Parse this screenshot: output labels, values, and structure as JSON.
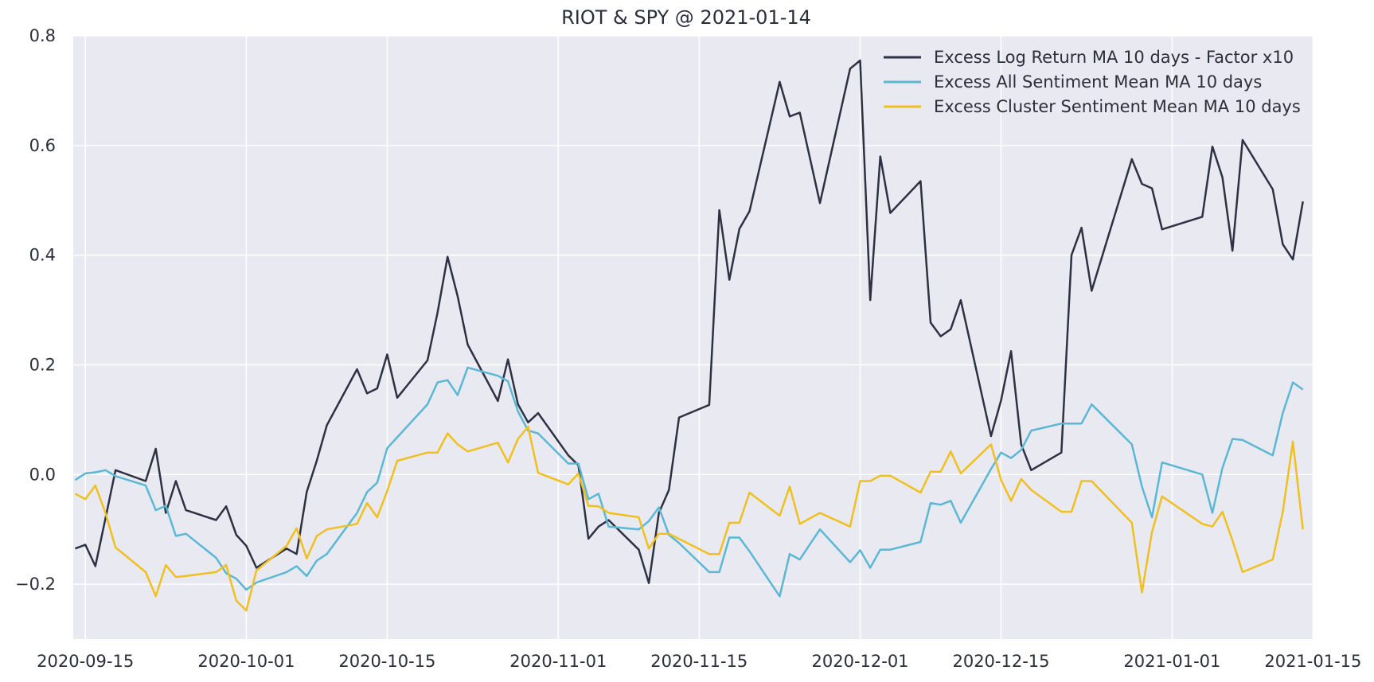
{
  "chart_data": {
    "type": "line",
    "title": "RIOT & SPY @ 2021-01-14",
    "xlabel": "",
    "ylabel": "",
    "x_axis": "date",
    "xlim": [
      "2020-09-14",
      "2021-01-15"
    ],
    "ylim": [
      -0.3,
      0.8
    ],
    "x_ticks": [
      "2020-09-15",
      "2020-10-01",
      "2020-10-15",
      "2020-11-01",
      "2020-11-15",
      "2020-12-01",
      "2020-12-15",
      "2021-01-01",
      "2021-01-15"
    ],
    "y_ticks": [
      -0.2,
      0.0,
      0.2,
      0.4,
      0.6,
      0.8
    ],
    "y_tick_labels": [
      "−0.2",
      "0.0",
      "0.2",
      "0.4",
      "0.6",
      "0.8"
    ],
    "grid": true,
    "background": "#e9e9f1",
    "legend_position": "top-right",
    "series": [
      {
        "name": "Excess Log Return MA 10 days - Factor x10",
        "color": "#2d3142",
        "points": [
          [
            "2020-09-14",
            -0.135
          ],
          [
            "2020-09-15",
            -0.128
          ],
          [
            "2020-09-16",
            -0.167
          ],
          [
            "2020-09-17",
            -0.08
          ],
          [
            "2020-09-18",
            0.008
          ],
          [
            "2020-09-21",
            -0.012
          ],
          [
            "2020-09-22",
            0.047
          ],
          [
            "2020-09-23",
            -0.07
          ],
          [
            "2020-09-24",
            -0.012
          ],
          [
            "2020-09-25",
            -0.065
          ],
          [
            "2020-09-28",
            -0.083
          ],
          [
            "2020-09-29",
            -0.058
          ],
          [
            "2020-09-30",
            -0.11
          ],
          [
            "2020-10-01",
            -0.13
          ],
          [
            "2020-10-02",
            -0.17
          ],
          [
            "2020-10-05",
            -0.135
          ],
          [
            "2020-10-06",
            -0.145
          ],
          [
            "2020-10-07",
            -0.032
          ],
          [
            "2020-10-08",
            0.025
          ],
          [
            "2020-10-09",
            0.09
          ],
          [
            "2020-10-12",
            0.192
          ],
          [
            "2020-10-13",
            0.148
          ],
          [
            "2020-10-14",
            0.157
          ],
          [
            "2020-10-15",
            0.219
          ],
          [
            "2020-10-16",
            0.14
          ],
          [
            "2020-10-19",
            0.208
          ],
          [
            "2020-10-20",
            0.295
          ],
          [
            "2020-10-21",
            0.397
          ],
          [
            "2020-10-22",
            0.325
          ],
          [
            "2020-10-23",
            0.237
          ],
          [
            "2020-10-26",
            0.134
          ],
          [
            "2020-10-27",
            0.21
          ],
          [
            "2020-10-28",
            0.128
          ],
          [
            "2020-10-29",
            0.095
          ],
          [
            "2020-10-30",
            0.112
          ],
          [
            "2020-11-02",
            0.035
          ],
          [
            "2020-11-03",
            0.017
          ],
          [
            "2020-11-04",
            -0.117
          ],
          [
            "2020-11-05",
            -0.095
          ],
          [
            "2020-11-06",
            -0.083
          ],
          [
            "2020-11-09",
            -0.137
          ],
          [
            "2020-11-10",
            -0.198
          ],
          [
            "2020-11-11",
            -0.07
          ],
          [
            "2020-11-12",
            -0.028
          ],
          [
            "2020-11-13",
            0.104
          ],
          [
            "2020-11-16",
            0.127
          ],
          [
            "2020-11-17",
            0.482
          ],
          [
            "2020-11-18",
            0.355
          ],
          [
            "2020-11-19",
            0.448
          ],
          [
            "2020-11-20",
            0.48
          ],
          [
            "2020-11-23",
            0.716
          ],
          [
            "2020-11-24",
            0.653
          ],
          [
            "2020-11-25",
            0.66
          ],
          [
            "2020-11-27",
            0.495
          ],
          [
            "2020-11-30",
            0.74
          ],
          [
            "2020-12-01",
            0.755
          ],
          [
            "2020-12-02",
            0.318
          ],
          [
            "2020-12-03",
            0.58
          ],
          [
            "2020-12-04",
            0.477
          ],
          [
            "2020-12-07",
            0.535
          ],
          [
            "2020-12-08",
            0.277
          ],
          [
            "2020-12-09",
            0.252
          ],
          [
            "2020-12-10",
            0.265
          ],
          [
            "2020-12-11",
            0.318
          ],
          [
            "2020-12-14",
            0.07
          ],
          [
            "2020-12-15",
            0.135
          ],
          [
            "2020-12-16",
            0.225
          ],
          [
            "2020-12-17",
            0.055
          ],
          [
            "2020-12-18",
            0.008
          ],
          [
            "2020-12-21",
            0.04
          ],
          [
            "2020-12-22",
            0.4
          ],
          [
            "2020-12-23",
            0.45
          ],
          [
            "2020-12-24",
            0.335
          ],
          [
            "2020-12-28",
            0.575
          ],
          [
            "2020-12-29",
            0.53
          ],
          [
            "2020-12-30",
            0.522
          ],
          [
            "2020-12-31",
            0.447
          ],
          [
            "2021-01-04",
            0.47
          ],
          [
            "2021-01-05",
            0.598
          ],
          [
            "2021-01-06",
            0.542
          ],
          [
            "2021-01-07",
            0.408
          ],
          [
            "2021-01-08",
            0.61
          ],
          [
            "2021-01-11",
            0.52
          ],
          [
            "2021-01-12",
            0.42
          ],
          [
            "2021-01-13",
            0.392
          ],
          [
            "2021-01-14",
            0.498
          ]
        ]
      },
      {
        "name": "Excess All Sentiment Mean MA 10 days",
        "color": "#5bb8d4",
        "points": [
          [
            "2020-09-14",
            -0.01
          ],
          [
            "2020-09-15",
            0.002
          ],
          [
            "2020-09-16",
            0.004
          ],
          [
            "2020-09-17",
            0.008
          ],
          [
            "2020-09-18",
            -0.003
          ],
          [
            "2020-09-21",
            -0.02
          ],
          [
            "2020-09-22",
            -0.065
          ],
          [
            "2020-09-23",
            -0.057
          ],
          [
            "2020-09-24",
            -0.112
          ],
          [
            "2020-09-25",
            -0.108
          ],
          [
            "2020-09-28",
            -0.152
          ],
          [
            "2020-09-29",
            -0.18
          ],
          [
            "2020-09-30",
            -0.19
          ],
          [
            "2020-10-01",
            -0.21
          ],
          [
            "2020-10-02",
            -0.197
          ],
          [
            "2020-10-05",
            -0.178
          ],
          [
            "2020-10-06",
            -0.167
          ],
          [
            "2020-10-07",
            -0.185
          ],
          [
            "2020-10-08",
            -0.157
          ],
          [
            "2020-10-09",
            -0.145
          ],
          [
            "2020-10-12",
            -0.07
          ],
          [
            "2020-10-13",
            -0.032
          ],
          [
            "2020-10-14",
            -0.015
          ],
          [
            "2020-10-15",
            0.048
          ],
          [
            "2020-10-19",
            0.128
          ],
          [
            "2020-10-20",
            0.168
          ],
          [
            "2020-10-21",
            0.172
          ],
          [
            "2020-10-22",
            0.145
          ],
          [
            "2020-10-23",
            0.195
          ],
          [
            "2020-10-26",
            0.18
          ],
          [
            "2020-10-27",
            0.17
          ],
          [
            "2020-10-28",
            0.115
          ],
          [
            "2020-10-29",
            0.08
          ],
          [
            "2020-10-30",
            0.075
          ],
          [
            "2020-11-02",
            0.02
          ],
          [
            "2020-11-03",
            0.02
          ],
          [
            "2020-11-04",
            -0.045
          ],
          [
            "2020-11-05",
            -0.035
          ],
          [
            "2020-11-06",
            -0.095
          ],
          [
            "2020-11-09",
            -0.1
          ],
          [
            "2020-11-10",
            -0.085
          ],
          [
            "2020-11-11",
            -0.06
          ],
          [
            "2020-11-12",
            -0.11
          ],
          [
            "2020-11-13",
            -0.125
          ],
          [
            "2020-11-16",
            -0.178
          ],
          [
            "2020-11-17",
            -0.178
          ],
          [
            "2020-11-18",
            -0.115
          ],
          [
            "2020-11-19",
            -0.115
          ],
          [
            "2020-11-20",
            -0.14
          ],
          [
            "2020-11-23",
            -0.222
          ],
          [
            "2020-11-24",
            -0.145
          ],
          [
            "2020-11-25",
            -0.155
          ],
          [
            "2020-11-27",
            -0.1
          ],
          [
            "2020-11-30",
            -0.16
          ],
          [
            "2020-12-01",
            -0.138
          ],
          [
            "2020-12-02",
            -0.17
          ],
          [
            "2020-12-03",
            -0.137
          ],
          [
            "2020-12-04",
            -0.137
          ],
          [
            "2020-12-07",
            -0.123
          ],
          [
            "2020-12-08",
            -0.052
          ],
          [
            "2020-12-09",
            -0.055
          ],
          [
            "2020-12-10",
            -0.048
          ],
          [
            "2020-12-11",
            -0.088
          ],
          [
            "2020-12-14",
            0.01
          ],
          [
            "2020-12-15",
            0.04
          ],
          [
            "2020-12-16",
            0.03
          ],
          [
            "2020-12-17",
            0.045
          ],
          [
            "2020-12-18",
            0.08
          ],
          [
            "2020-12-21",
            0.093
          ],
          [
            "2020-12-22",
            0.093
          ],
          [
            "2020-12-23",
            0.093
          ],
          [
            "2020-12-24",
            0.128
          ],
          [
            "2020-12-28",
            0.055
          ],
          [
            "2020-12-29",
            -0.022
          ],
          [
            "2020-12-30",
            -0.078
          ],
          [
            "2020-12-31",
            0.022
          ],
          [
            "2021-01-04",
            0.0
          ],
          [
            "2021-01-05",
            -0.07
          ],
          [
            "2021-01-06",
            0.012
          ],
          [
            "2021-01-07",
            0.065
          ],
          [
            "2021-01-08",
            0.063
          ],
          [
            "2021-01-11",
            0.035
          ],
          [
            "2021-01-12",
            0.112
          ],
          [
            "2021-01-13",
            0.168
          ],
          [
            "2021-01-14",
            0.155
          ]
        ]
      },
      {
        "name": "Excess Cluster Sentiment Mean MA 10 days",
        "color": "#f0c020",
        "points": [
          [
            "2020-09-14",
            -0.035
          ],
          [
            "2020-09-15",
            -0.045
          ],
          [
            "2020-09-16",
            -0.02
          ],
          [
            "2020-09-17",
            -0.07
          ],
          [
            "2020-09-18",
            -0.133
          ],
          [
            "2020-09-21",
            -0.178
          ],
          [
            "2020-09-22",
            -0.222
          ],
          [
            "2020-09-23",
            -0.165
          ],
          [
            "2020-09-24",
            -0.187
          ],
          [
            "2020-09-25",
            -0.185
          ],
          [
            "2020-09-28",
            -0.178
          ],
          [
            "2020-09-29",
            -0.165
          ],
          [
            "2020-09-30",
            -0.23
          ],
          [
            "2020-10-01",
            -0.248
          ],
          [
            "2020-10-02",
            -0.175
          ],
          [
            "2020-10-05",
            -0.13
          ],
          [
            "2020-10-06",
            -0.098
          ],
          [
            "2020-10-07",
            -0.153
          ],
          [
            "2020-10-08",
            -0.112
          ],
          [
            "2020-10-09",
            -0.1
          ],
          [
            "2020-10-12",
            -0.09
          ],
          [
            "2020-10-13",
            -0.052
          ],
          [
            "2020-10-14",
            -0.078
          ],
          [
            "2020-10-15",
            -0.03
          ],
          [
            "2020-10-16",
            0.025
          ],
          [
            "2020-10-19",
            0.04
          ],
          [
            "2020-10-20",
            0.04
          ],
          [
            "2020-10-21",
            0.075
          ],
          [
            "2020-10-22",
            0.055
          ],
          [
            "2020-10-23",
            0.042
          ],
          [
            "2020-10-26",
            0.058
          ],
          [
            "2020-10-27",
            0.022
          ],
          [
            "2020-10-28",
            0.065
          ],
          [
            "2020-10-29",
            0.087
          ],
          [
            "2020-10-30",
            0.003
          ],
          [
            "2020-11-02",
            -0.018
          ],
          [
            "2020-11-03",
            0.002
          ],
          [
            "2020-11-04",
            -0.057
          ],
          [
            "2020-11-05",
            -0.058
          ],
          [
            "2020-11-06",
            -0.07
          ],
          [
            "2020-11-09",
            -0.078
          ],
          [
            "2020-11-10",
            -0.135
          ],
          [
            "2020-11-11",
            -0.108
          ],
          [
            "2020-11-12",
            -0.108
          ],
          [
            "2020-11-16",
            -0.145
          ],
          [
            "2020-11-17",
            -0.145
          ],
          [
            "2020-11-18",
            -0.088
          ],
          [
            "2020-11-19",
            -0.088
          ],
          [
            "2020-11-20",
            -0.033
          ],
          [
            "2020-11-23",
            -0.075
          ],
          [
            "2020-11-24",
            -0.022
          ],
          [
            "2020-11-25",
            -0.09
          ],
          [
            "2020-11-27",
            -0.07
          ],
          [
            "2020-11-30",
            -0.095
          ],
          [
            "2020-12-01",
            -0.012
          ],
          [
            "2020-12-02",
            -0.012
          ],
          [
            "2020-12-03",
            -0.002
          ],
          [
            "2020-12-04",
            -0.002
          ],
          [
            "2020-12-07",
            -0.033
          ],
          [
            "2020-12-08",
            0.005
          ],
          [
            "2020-12-09",
            0.005
          ],
          [
            "2020-12-10",
            0.042
          ],
          [
            "2020-12-11",
            0.002
          ],
          [
            "2020-12-14",
            0.055
          ],
          [
            "2020-12-15",
            -0.01
          ],
          [
            "2020-12-16",
            -0.048
          ],
          [
            "2020-12-17",
            -0.008
          ],
          [
            "2020-12-18",
            -0.028
          ],
          [
            "2020-12-21",
            -0.068
          ],
          [
            "2020-12-22",
            -0.068
          ],
          [
            "2020-12-23",
            -0.012
          ],
          [
            "2020-12-24",
            -0.012
          ],
          [
            "2020-12-28",
            -0.088
          ],
          [
            "2020-12-29",
            -0.215
          ],
          [
            "2020-12-30",
            -0.105
          ],
          [
            "2020-12-31",
            -0.04
          ],
          [
            "2021-01-04",
            -0.09
          ],
          [
            "2021-01-05",
            -0.095
          ],
          [
            "2021-01-06",
            -0.068
          ],
          [
            "2021-01-07",
            -0.12
          ],
          [
            "2021-01-08",
            -0.178
          ],
          [
            "2021-01-11",
            -0.155
          ],
          [
            "2021-01-12",
            -0.068
          ],
          [
            "2021-01-13",
            0.06
          ],
          [
            "2021-01-14",
            -0.1
          ]
        ]
      }
    ]
  }
}
